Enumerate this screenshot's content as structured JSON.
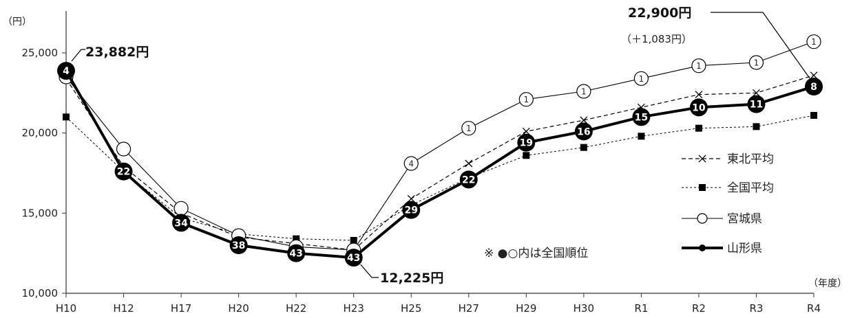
{
  "chart_data": {
    "type": "line",
    "categories": [
      "H10",
      "H12",
      "H17",
      "H20",
      "H22",
      "H23",
      "H25",
      "H27",
      "H29",
      "H30",
      "R1",
      "R2",
      "R3",
      "R4"
    ],
    "y_unit": "（円）",
    "x_unit": "（年度）",
    "ylim": [
      10000,
      25000
    ],
    "yticks": [
      "10,000",
      "15,000",
      "20,000",
      "25,000"
    ],
    "series": [
      {
        "name": "東北平均",
        "style": "dashed-x",
        "values": [
          23400,
          17900,
          15000,
          13500,
          13100,
          12700,
          15900,
          18100,
          20100,
          20800,
          21600,
          22400,
          22500,
          23600
        ]
      },
      {
        "name": "全国平均",
        "style": "dotted-square",
        "values": [
          21000,
          17600,
          14700,
          13700,
          13400,
          13300,
          15500,
          17200,
          18600,
          19100,
          19800,
          20300,
          20400,
          21100
        ]
      },
      {
        "name": "宮城県",
        "style": "thin-open-circle",
        "values": [
          23500,
          19000,
          15300,
          13600,
          12900,
          12700,
          18100,
          20300,
          22100,
          22600,
          23400,
          24200,
          24400,
          25700
        ],
        "ranks": [
          "",
          "",
          "",
          "",
          "",
          "",
          "4",
          "1",
          "1",
          "1",
          "1",
          "1",
          "1",
          "1"
        ]
      },
      {
        "name": "山形県",
        "style": "thick-filled-circle",
        "values": [
          23882,
          17600,
          14400,
          13000,
          12500,
          12225,
          15200,
          17100,
          19400,
          20100,
          21000,
          21600,
          21800,
          22900
        ],
        "ranks": [
          "4",
          "22",
          "34",
          "38",
          "43",
          "43",
          "29",
          "22",
          "19",
          "16",
          "15",
          "10",
          "11",
          "8"
        ]
      }
    ],
    "annotations": {
      "start": "23,882円",
      "min": "12,225円",
      "end": "22,900円",
      "end_diff": "（＋1,083円）"
    },
    "note": "※ ●○内は全国順位",
    "colors": {
      "line": "#000000",
      "background": "#ffffff"
    }
  }
}
